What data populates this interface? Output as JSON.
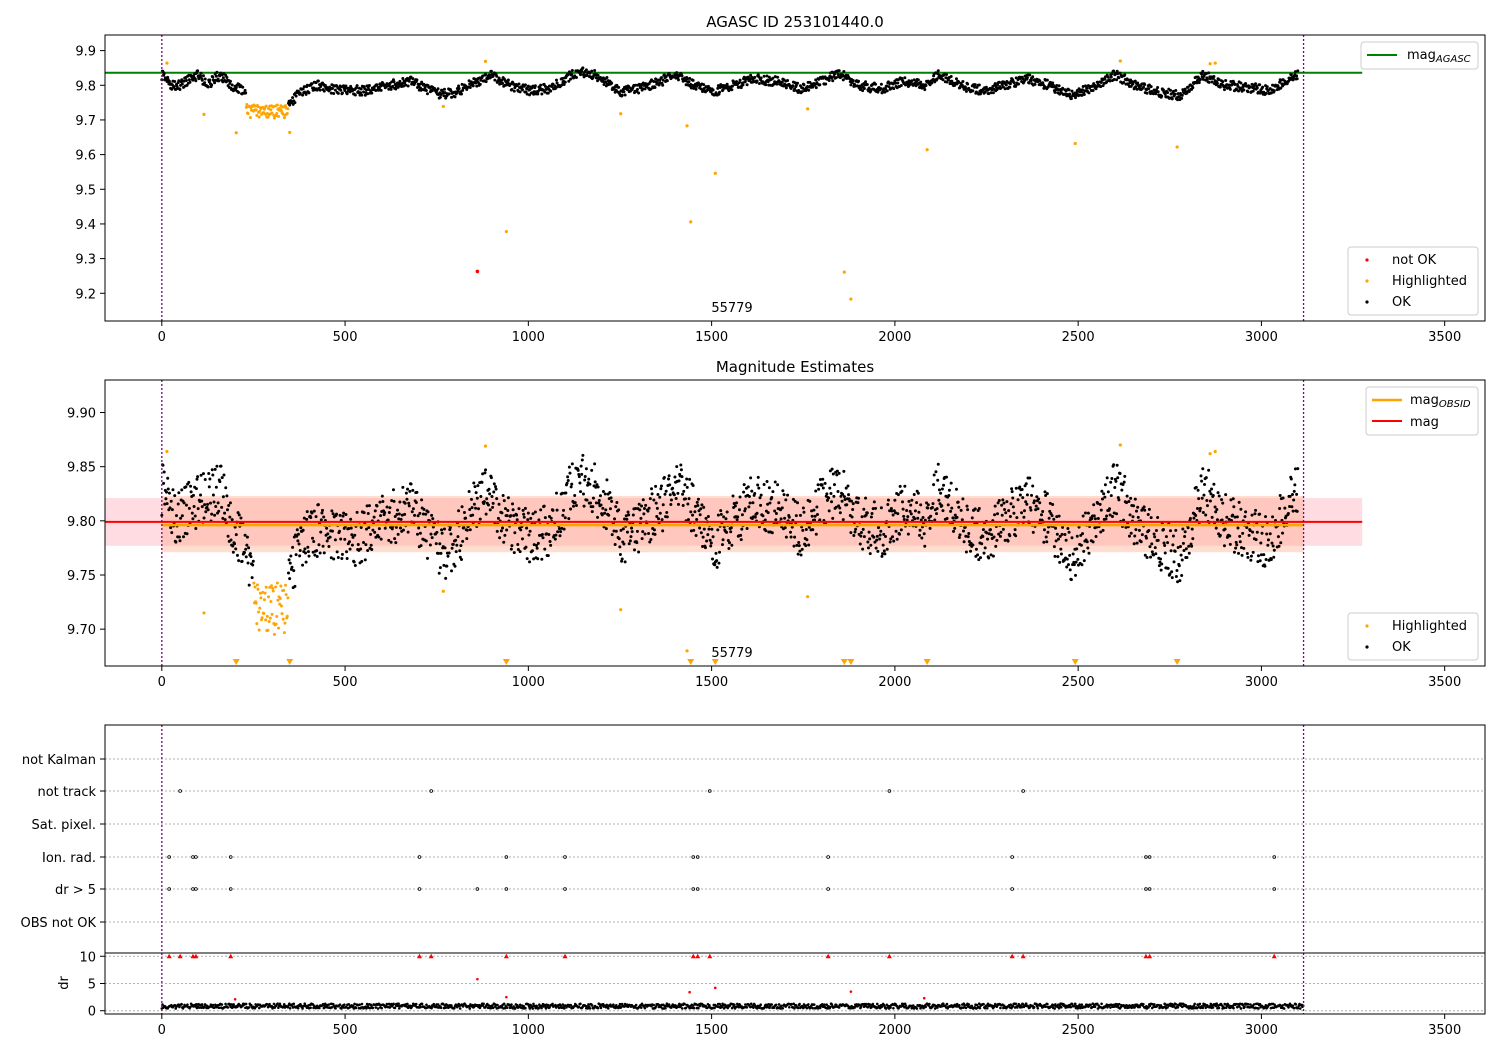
{
  "colors": {
    "ok": "#000000",
    "highlighted": "#ffa500",
    "not_ok": "#ff0000",
    "mag_agasc_line": "#008000",
    "mag_line": "#ff0000",
    "mag_obsid_line": "#ffa500",
    "band_mag": "#ffc0cb",
    "band_obsid": "#ffa07a",
    "obs_boundary": "#800080",
    "flag_points": "#000000",
    "dr_points": "#000000",
    "dr_flag_marks": "#ff0000",
    "grid": "#b0b0b0"
  },
  "chart_data": [
    {
      "type": "scatter",
      "title": "AGASC ID 253101440.0",
      "annotation": "55779",
      "x_ticks": [
        "0",
        "500",
        "1000",
        "1500",
        "2000",
        "2500",
        "3000",
        "3500"
      ],
      "y_ticks": [
        "9.2",
        "9.3",
        "9.4",
        "9.5",
        "9.6",
        "9.7",
        "9.8",
        "9.9"
      ],
      "xlim": [
        -155,
        3610
      ],
      "ylim": [
        9.12,
        9.945
      ],
      "obs_boundaries": [
        0,
        3115
      ],
      "mag_agasc": 9.836,
      "legend_top": [
        {
          "label_main": "mag",
          "label_sub": "AGASC"
        }
      ],
      "legend_bottom": [
        {
          "label": "not OK"
        },
        {
          "label": "Highlighted"
        },
        {
          "label": "OK"
        }
      ],
      "highlighted_points": [
        [
          14,
          9.864
        ],
        [
          115,
          9.716
        ],
        [
          203,
          9.663
        ],
        [
          349,
          9.664
        ],
        [
          768,
          9.739
        ],
        [
          883,
          9.869
        ],
        [
          940,
          9.378
        ],
        [
          1252,
          9.718
        ],
        [
          1433,
          9.683
        ],
        [
          1443,
          9.406
        ],
        [
          1510,
          9.546
        ],
        [
          1762,
          9.732
        ],
        [
          1862,
          9.261
        ],
        [
          1880,
          9.183
        ],
        [
          2088,
          9.614
        ],
        [
          2492,
          9.632
        ],
        [
          2615,
          9.87
        ],
        [
          2770,
          9.622
        ],
        [
          2860,
          9.862
        ],
        [
          2874,
          9.864
        ]
      ],
      "not_ok_points": [
        [
          861,
          9.263
        ]
      ],
      "ok_sample": [
        [
          0,
          9.83
        ],
        [
          25,
          9.8
        ],
        [
          50,
          9.8
        ],
        [
          80,
          9.82
        ],
        [
          100,
          9.83
        ],
        [
          125,
          9.8
        ],
        [
          150,
          9.825
        ],
        [
          175,
          9.82
        ],
        [
          190,
          9.8
        ],
        [
          210,
          9.79
        ],
        [
          228,
          9.775
        ],
        [
          350,
          9.745
        ],
        [
          365,
          9.765
        ],
        [
          380,
          9.78
        ],
        [
          420,
          9.8
        ],
        [
          460,
          9.79
        ],
        [
          500,
          9.785
        ],
        [
          560,
          9.785
        ],
        [
          620,
          9.8
        ],
        [
          680,
          9.81
        ],
        [
          720,
          9.79
        ],
        [
          760,
          9.775
        ],
        [
          800,
          9.78
        ],
        [
          860,
          9.81
        ],
        [
          900,
          9.83
        ],
        [
          950,
          9.8
        ],
        [
          1000,
          9.785
        ],
        [
          1060,
          9.79
        ],
        [
          1120,
          9.83
        ],
        [
          1160,
          9.84
        ],
        [
          1200,
          9.82
        ],
        [
          1250,
          9.78
        ],
        [
          1300,
          9.79
        ],
        [
          1360,
          9.81
        ],
        [
          1400,
          9.835
        ],
        [
          1450,
          9.8
        ],
        [
          1500,
          9.78
        ],
        [
          1560,
          9.8
        ],
        [
          1620,
          9.82
        ],
        [
          1680,
          9.81
        ],
        [
          1740,
          9.79
        ],
        [
          1800,
          9.81
        ],
        [
          1850,
          9.835
        ],
        [
          1900,
          9.8
        ],
        [
          1960,
          9.79
        ],
        [
          2020,
          9.81
        ],
        [
          2080,
          9.8
        ],
        [
          2120,
          9.83
        ],
        [
          2180,
          9.8
        ],
        [
          2240,
          9.785
        ],
        [
          2300,
          9.8
        ],
        [
          2360,
          9.82
        ],
        [
          2420,
          9.8
        ],
        [
          2480,
          9.775
        ],
        [
          2540,
          9.79
        ],
        [
          2600,
          9.83
        ],
        [
          2660,
          9.8
        ],
        [
          2720,
          9.78
        ],
        [
          2780,
          9.77
        ],
        [
          2840,
          9.83
        ],
        [
          2900,
          9.8
        ],
        [
          2960,
          9.795
        ],
        [
          3020,
          9.785
        ],
        [
          3080,
          9.82
        ],
        [
          3110,
          9.84
        ]
      ]
    },
    {
      "type": "scatter",
      "title": "Magnitude Estimates",
      "annotation": "55779",
      "x_ticks": [
        "0",
        "500",
        "1000",
        "1500",
        "2000",
        "2500",
        "3000",
        "3500"
      ],
      "y_ticks": [
        "9.70",
        "9.75",
        "9.80",
        "9.85",
        "9.90"
      ],
      "xlim": [
        -155,
        3610
      ],
      "ylim": [
        9.666,
        9.93
      ],
      "obs_boundaries": [
        0,
        3115
      ],
      "mag": 9.799,
      "mag_band": [
        9.777,
        9.821
      ],
      "mag_obsid": 9.796,
      "legend_top": [
        {
          "label_main": "mag",
          "label_sub": "OBSID"
        },
        {
          "label_main": "mag",
          "label_sub": ""
        }
      ],
      "legend_bottom": [
        {
          "label": "Highlighted"
        },
        {
          "label": "OK"
        }
      ],
      "highlighted_points": [
        [
          14,
          9.864
        ],
        [
          115,
          9.715
        ],
        [
          768,
          9.735
        ],
        [
          883,
          9.869
        ],
        [
          1252,
          9.718
        ],
        [
          1433,
          9.68
        ],
        [
          1762,
          9.73
        ],
        [
          2615,
          9.87
        ],
        [
          2860,
          9.862
        ],
        [
          2874,
          9.864
        ]
      ],
      "below_range_markers": [
        203,
        349,
        940,
        1443,
        1510,
        1862,
        1880,
        2088,
        2492,
        2770
      ],
      "ok_sample": [
        [
          0,
          9.83
        ],
        [
          40,
          9.8
        ],
        [
          80,
          9.815
        ],
        [
          120,
          9.82
        ],
        [
          160,
          9.83
        ],
        [
          200,
          9.79
        ],
        [
          240,
          9.76
        ],
        [
          280,
          9.745
        ],
        [
          330,
          9.735
        ],
        [
          360,
          9.76
        ],
        [
          400,
          9.79
        ],
        [
          450,
          9.79
        ],
        [
          520,
          9.78
        ],
        [
          600,
          9.8
        ],
        [
          680,
          9.81
        ],
        [
          720,
          9.79
        ],
        [
          770,
          9.77
        ],
        [
          820,
          9.79
        ],
        [
          880,
          9.83
        ],
        [
          940,
          9.8
        ],
        [
          1000,
          9.785
        ],
        [
          1060,
          9.79
        ],
        [
          1120,
          9.83
        ],
        [
          1160,
          9.84
        ],
        [
          1220,
          9.81
        ],
        [
          1260,
          9.78
        ],
        [
          1320,
          9.8
        ],
        [
          1380,
          9.82
        ],
        [
          1400,
          9.845
        ],
        [
          1460,
          9.8
        ],
        [
          1500,
          9.775
        ],
        [
          1560,
          9.8
        ],
        [
          1620,
          9.82
        ],
        [
          1680,
          9.81
        ],
        [
          1740,
          9.79
        ],
        [
          1800,
          9.815
        ],
        [
          1850,
          9.83
        ],
        [
          1900,
          9.8
        ],
        [
          1960,
          9.79
        ],
        [
          2020,
          9.81
        ],
        [
          2080,
          9.8
        ],
        [
          2120,
          9.83
        ],
        [
          2180,
          9.8
        ],
        [
          2240,
          9.785
        ],
        [
          2300,
          9.8
        ],
        [
          2360,
          9.82
        ],
        [
          2420,
          9.8
        ],
        [
          2480,
          9.77
        ],
        [
          2540,
          9.79
        ],
        [
          2600,
          9.83
        ],
        [
          2660,
          9.8
        ],
        [
          2720,
          9.78
        ],
        [
          2780,
          9.765
        ],
        [
          2840,
          9.83
        ],
        [
          2900,
          9.8
        ],
        [
          2960,
          9.79
        ],
        [
          3020,
          9.78
        ],
        [
          3080,
          9.82
        ],
        [
          3110,
          9.84
        ]
      ]
    },
    {
      "type": "scatter",
      "title": "",
      "x_ticks": [
        "0",
        "500",
        "1000",
        "1500",
        "2000",
        "2500",
        "3000",
        "3500"
      ],
      "xlim": [
        -155,
        3610
      ],
      "obs_boundaries": [
        0,
        3115
      ],
      "flag_rows": [
        {
          "label": "not Kalman",
          "x": []
        },
        {
          "label": "not track",
          "x": [
            50,
            735,
            1495,
            1985,
            2350
          ]
        },
        {
          "label": "Sat. pixel.",
          "x": []
        },
        {
          "label": "Ion. rad.",
          "x": [
            20,
            85,
            93,
            188,
            703,
            940,
            1100,
            1450,
            1462,
            1818,
            2320,
            2685,
            2695,
            3035
          ]
        },
        {
          "label": "dr > 5",
          "x": [
            20,
            85,
            93,
            188,
            703,
            861,
            940,
            1100,
            1450,
            1462,
            1818,
            2320,
            2685,
            2695,
            3035
          ]
        },
        {
          "label": "OBS not OK",
          "x": []
        }
      ],
      "dr_y_ticks": [
        "0",
        "5",
        "10"
      ],
      "dr_ylabel": "dr",
      "dr_ylim": [
        -0.6,
        10.6
      ],
      "dr_flag_marks_at_10": [
        20,
        50,
        85,
        93,
        188,
        703,
        735,
        940,
        1100,
        1450,
        1462,
        1495,
        1818,
        1985,
        2320,
        2350,
        2685,
        2695,
        3035
      ],
      "dr_outliers": [
        [
          861,
          5.8
        ],
        [
          1440,
          3.4
        ],
        [
          1510,
          4.2
        ],
        [
          1880,
          3.5
        ],
        [
          940,
          2.5
        ],
        [
          200,
          2.1
        ],
        [
          2080,
          2.3
        ]
      ]
    }
  ]
}
